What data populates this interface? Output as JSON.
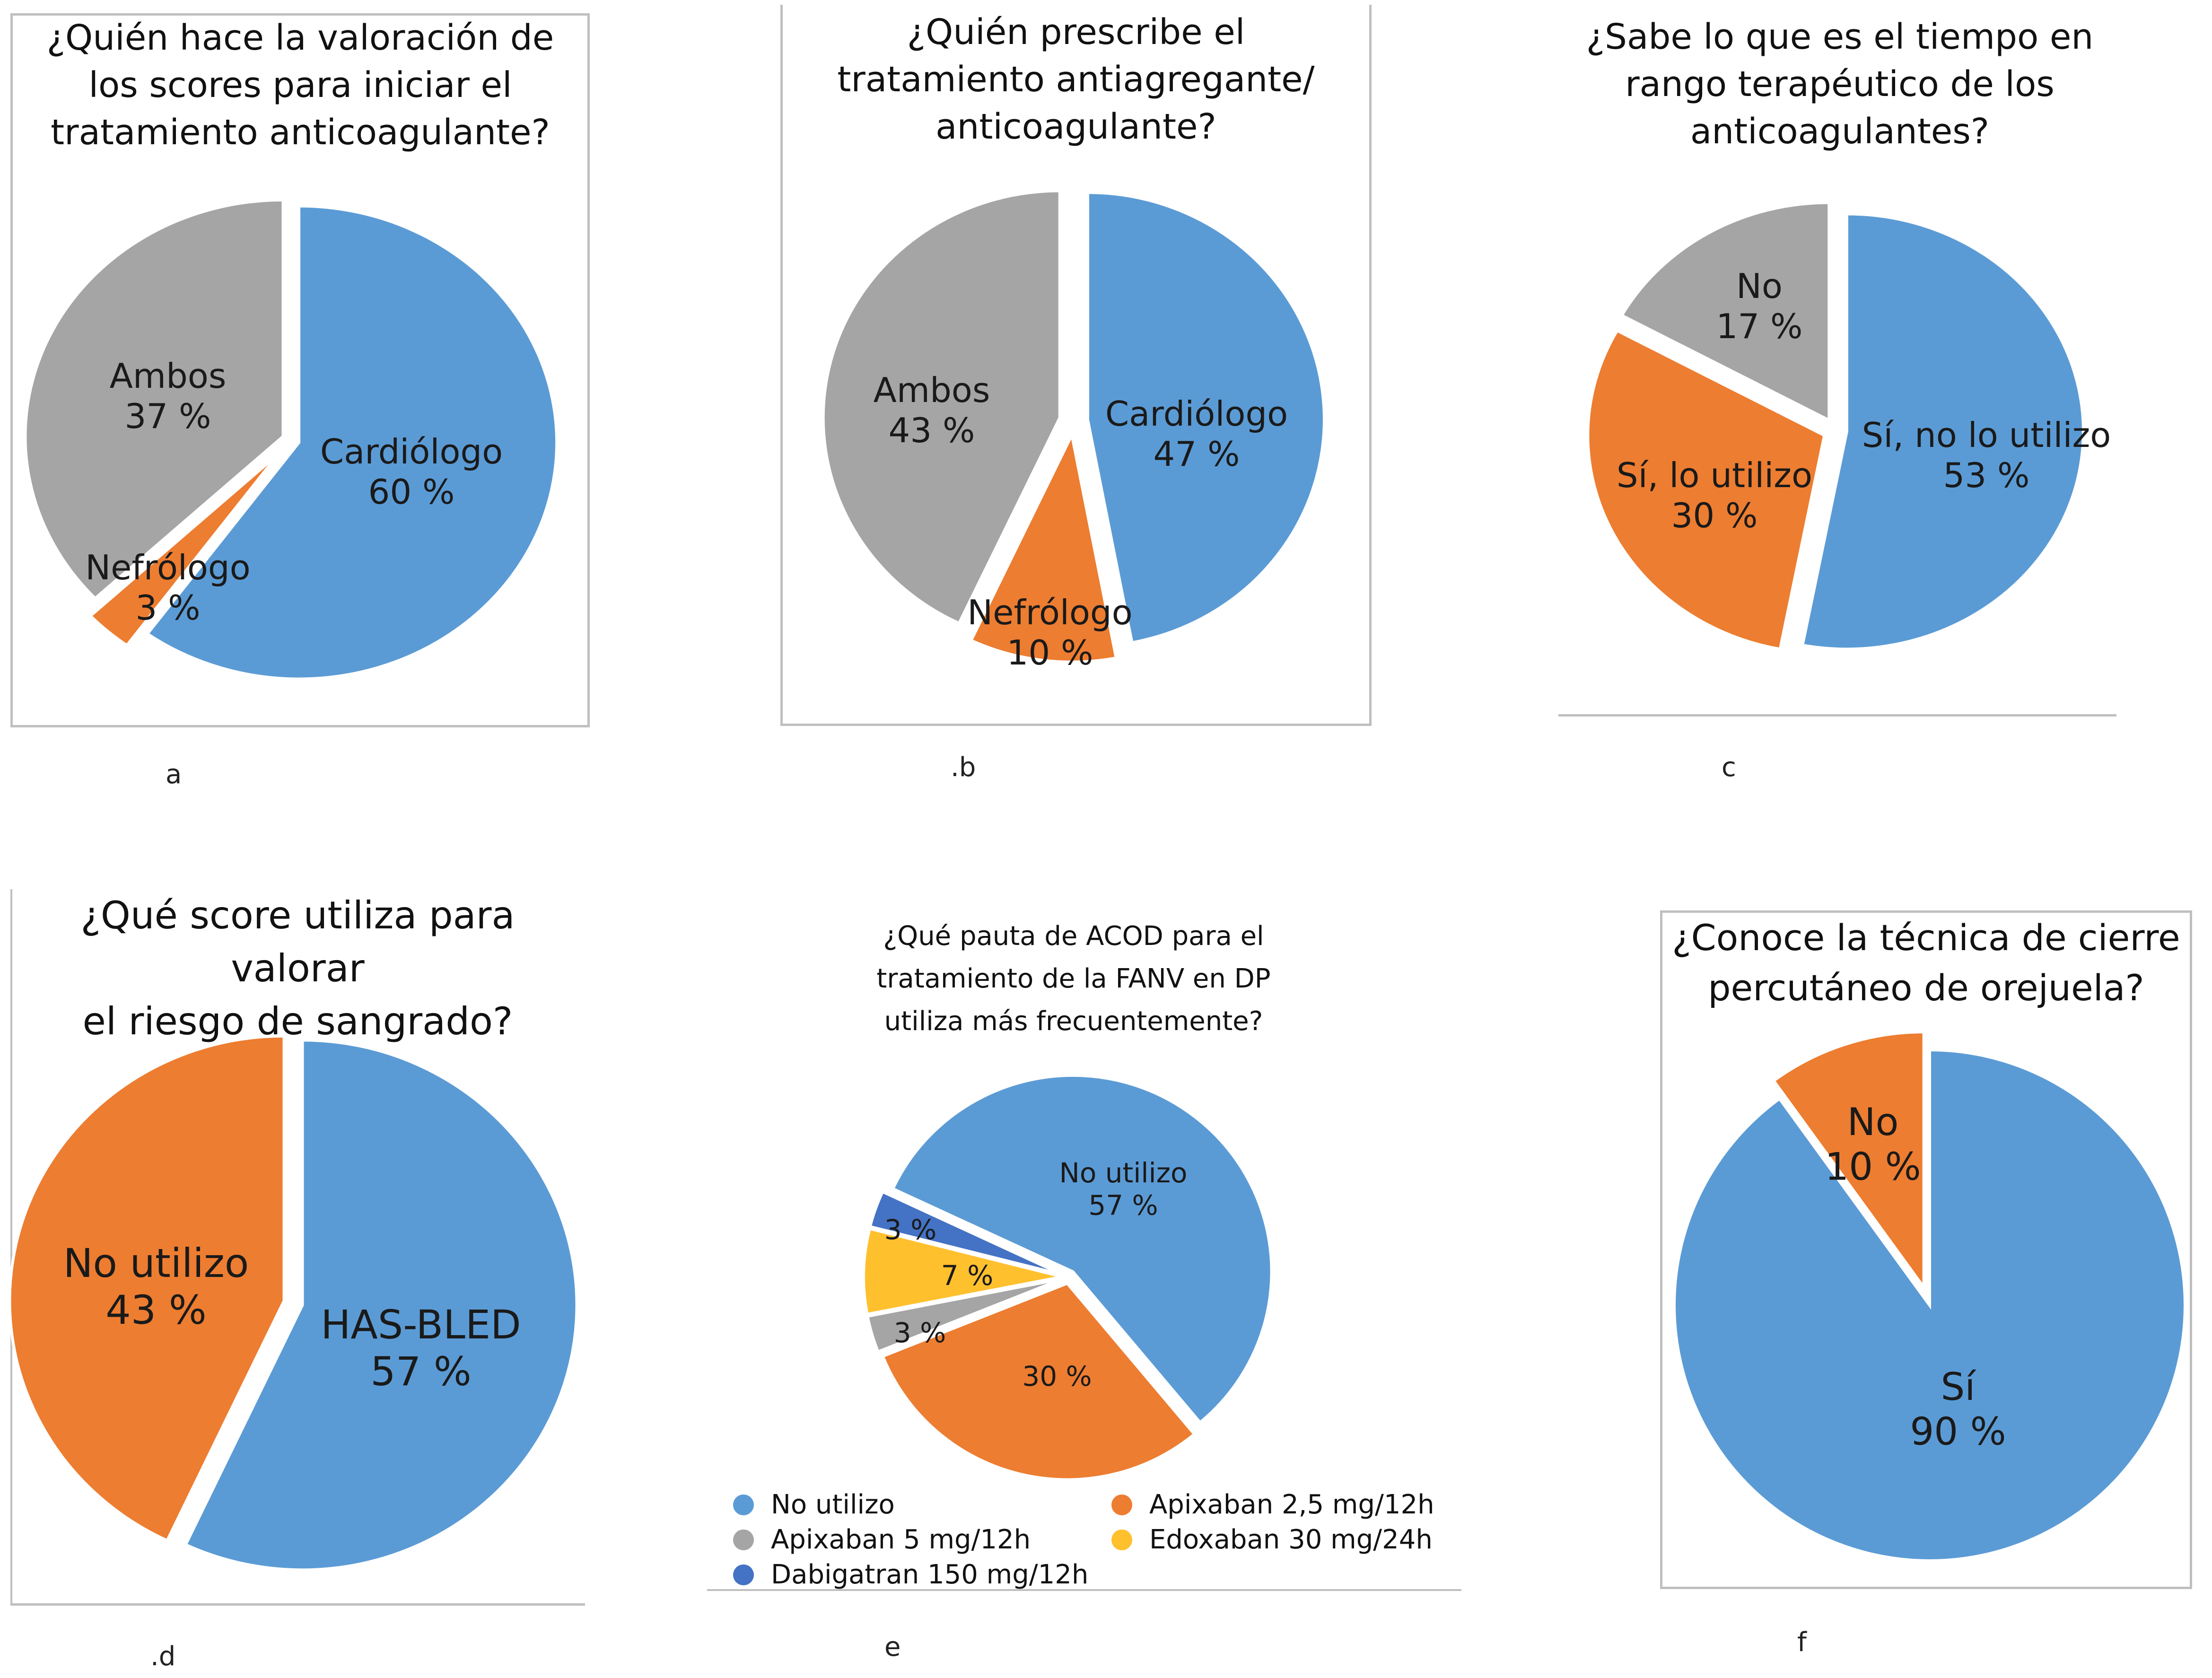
{
  "figure": {
    "panels": [
      "a",
      "b",
      "c",
      "d",
      "e",
      "f"
    ]
  },
  "colors": {
    "blue": "#5b9bd5",
    "orange": "#ed7d31",
    "gray": "#a5a5a5",
    "yellow": "#ffc02e",
    "darkblue": "#4472c4"
  },
  "chart_data": [
    {
      "id": "a",
      "type": "pie",
      "title": "¿Quién hace la valoración de los scores para iniciar el tratamiento anticoagulante?",
      "title_lines": [
        "¿Quién hace la valoración de",
        "los scores para iniciar el",
        "tratamiento anticoagulante?"
      ],
      "panel_label": "a",
      "slices": [
        {
          "label": "Cardiólogo",
          "value": 60,
          "display": "60 %",
          "color": "#5b9bd5"
        },
        {
          "label": "Nefrólogo",
          "value": 3,
          "display": "3 %",
          "color": "#ed7d31"
        },
        {
          "label": "Ambos",
          "value": 37,
          "display": "37 %",
          "color": "#a5a5a5"
        }
      ],
      "legend": "none"
    },
    {
      "id": "b",
      "type": "pie",
      "title": "¿Quién prescribe el tratamiento antiagregante/ anticoagulante?",
      "title_lines": [
        "¿Quién prescribe el",
        "tratamiento antiagregante/",
        "anticoagulante?"
      ],
      "panel_label": ".b",
      "slices": [
        {
          "label": "Cardiólogo",
          "value": 47,
          "display": "47 %",
          "color": "#5b9bd5"
        },
        {
          "label": "Nefrólogo",
          "value": 10,
          "display": "10 %",
          "color": "#ed7d31"
        },
        {
          "label": "Ambos",
          "value": 43,
          "display": "43 %",
          "color": "#a5a5a5"
        }
      ],
      "legend": "none"
    },
    {
      "id": "c",
      "type": "pie",
      "title": "¿Sabe lo que es el tiempo en rango terapéutico de los anticoagulantes?",
      "title_lines": [
        "¿Sabe lo que es el tiempo en",
        "rango terapéutico de los",
        "anticoagulantes?"
      ],
      "panel_label": "c",
      "slices": [
        {
          "label": "Sí, no lo utilizo",
          "value": 53,
          "display": "53 %",
          "color": "#5b9bd5"
        },
        {
          "label": "Sí, lo utilizo",
          "value": 30,
          "display": "30 %",
          "color": "#ed7d31"
        },
        {
          "label": "No",
          "value": 17,
          "display": "17 %",
          "color": "#a5a5a5"
        }
      ],
      "legend": "none"
    },
    {
      "id": "d",
      "type": "pie",
      "title": "¿Qué score utiliza para valorar el riesgo de sangrado?",
      "title_lines": [
        "¿Qué score utiliza para valorar",
        "el riesgo de sangrado?"
      ],
      "panel_label": ".d",
      "slices": [
        {
          "label": "HAS-BLED",
          "value": 57,
          "display": "57 %",
          "color": "#5b9bd5"
        },
        {
          "label": "No utilizo",
          "value": 43,
          "display": "43 %",
          "color": "#ed7d31"
        }
      ],
      "legend": "none"
    },
    {
      "id": "e",
      "type": "pie",
      "title": "¿Qué pauta de ACOD para el tratamiento de la FANV en DP utiliza más frecuentemente?",
      "title_lines": [
        "¿Qué pauta de ACOD para el",
        "tratamiento de la FANV en DP",
        "utiliza más frecuentemente?"
      ],
      "panel_label": "e",
      "slices": [
        {
          "label": "No utilizo",
          "value": 57,
          "display": "No utilizo 57 %",
          "color": "#5b9bd5"
        },
        {
          "label": "Apixaban 2,5 mg/12h",
          "value": 30,
          "display": "30 %",
          "color": "#ed7d31"
        },
        {
          "label": "Apixaban 5 mg/12h",
          "value": 3,
          "display": "3 %",
          "color": "#a5a5a5"
        },
        {
          "label": "Edoxaban 30 mg/24h",
          "value": 7,
          "display": "7 %",
          "color": "#ffc02e"
        },
        {
          "label": "Dabigatran 150 mg/12h",
          "value": 3,
          "display": "3 %",
          "color": "#4472c4"
        }
      ],
      "legend": "bottom",
      "legend_entries": [
        {
          "label": "No utilizo",
          "color": "#5b9bd5"
        },
        {
          "label": "Apixaban 2,5 mg/12h",
          "color": "#ed7d31"
        },
        {
          "label": "Apixaban 5 mg/12h",
          "color": "#a5a5a5"
        },
        {
          "label": "Edoxaban 30 mg/24h",
          "color": "#ffc02e"
        },
        {
          "label": "Dabigatran 150 mg/12h",
          "color": "#4472c4"
        }
      ]
    },
    {
      "id": "f",
      "type": "pie",
      "title": "¿Conoce la técnica de cierre percutáneo de orejuela?",
      "title_lines": [
        "¿Conoce la técnica de cierre",
        "percutáneo de orejuela?"
      ],
      "panel_label": "f",
      "slices": [
        {
          "label": "Sí",
          "value": 90,
          "display": "90 %",
          "color": "#5b9bd5"
        },
        {
          "label": "No",
          "value": 10,
          "display": "10 %",
          "color": "#ed7d31"
        }
      ],
      "legend": "none"
    }
  ]
}
